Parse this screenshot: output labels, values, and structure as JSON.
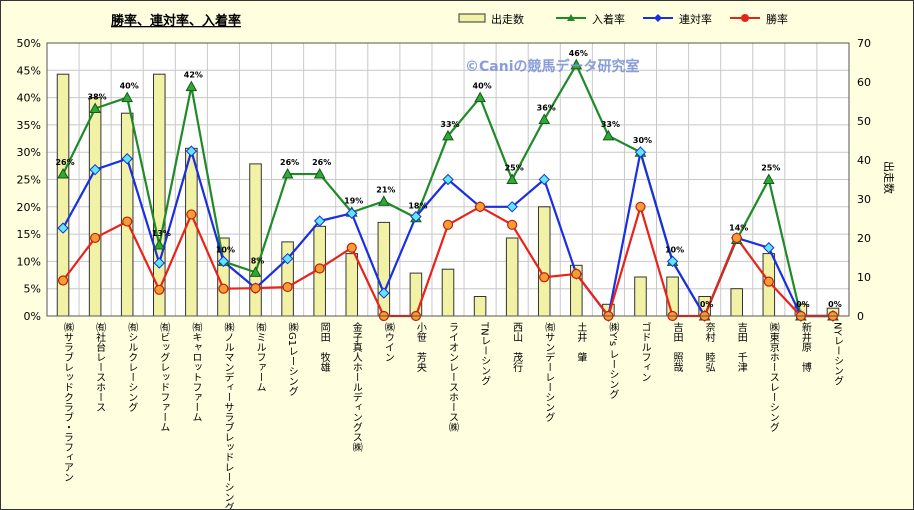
{
  "chart_data": {
    "type": "bar",
    "title": "勝率、連対率、入着率",
    "watermark": "©Caniの競馬データ研究室",
    "y2label": "出走数",
    "ylim": [
      0,
      50
    ],
    "y2lim": [
      0,
      70
    ],
    "yticks": [
      "0%",
      "5%",
      "10%",
      "15%",
      "20%",
      "25%",
      "30%",
      "35%",
      "40%",
      "45%",
      "50%"
    ],
    "y2ticks": [
      "0",
      "10",
      "20",
      "30",
      "40",
      "50",
      "60",
      "70"
    ],
    "categories": [
      "㈱サラブレッドクラブ・ラフィアン",
      "㈲社台レースホース",
      "㈲シルクレーシング",
      "㈲ビッグレッドファーム",
      "㈲キャロットファーム",
      "㈱ノルマンディーサラブレッドレーシング",
      "㈲ミルファーム",
      "㈱G1レーシング",
      "岡田　牧雄",
      "金子真人ホールディングス㈱",
      "㈱ウイン",
      "小笹　芳央",
      "ライオンレースホース㈱",
      "TNレーシング",
      "西山　茂行",
      "㈲サンデーレーシング",
      "土井　肇",
      "㈱Y's レーシング",
      "ゴドルフィン",
      "吉田　照哉",
      "奈村　睦弘",
      "吉田　千津",
      "㈱東京ホースレーシング",
      "新井原　博",
      "NYレーシング"
    ],
    "bar_series": {
      "name": "出走数",
      "values": [
        62,
        56,
        52,
        62,
        43,
        20,
        39,
        19,
        23,
        16,
        24,
        11,
        12,
        5,
        20,
        28,
        13,
        3,
        10,
        10,
        5,
        7,
        16,
        3,
        2
      ]
    },
    "series": [
      {
        "name": "入着率",
        "color": "#1e8a28",
        "values": [
          26,
          38,
          40,
          13,
          42,
          10,
          8,
          26,
          26,
          19,
          21,
          18,
          33,
          40,
          25,
          36,
          46,
          33,
          30,
          10,
          0,
          14,
          25,
          0,
          0
        ]
      },
      {
        "name": "連対率",
        "color": "#1a2fe0",
        "values": [
          16.1,
          26.8,
          28.8,
          9.7,
          30.2,
          10,
          5.1,
          10.5,
          17.4,
          18.8,
          4.2,
          18.2,
          25,
          20,
          20,
          25,
          7.7,
          0,
          30,
          10,
          0,
          14.3,
          12.5,
          0,
          0
        ]
      },
      {
        "name": "勝率",
        "color": "#e8231a",
        "values": [
          6.5,
          14.3,
          17.3,
          4.8,
          18.6,
          5,
          5.1,
          5.3,
          8.7,
          12.5,
          0,
          0,
          16.7,
          20,
          16.7,
          7.1,
          7.7,
          0,
          20,
          0,
          0,
          14.3,
          6.3,
          0,
          0
        ]
      }
    ],
    "data_labels": {
      "series": "入着率",
      "values": [
        "26%",
        "38%",
        "40%",
        "13%",
        "42%",
        "10%",
        "8%",
        "26%",
        "26%",
        "19%",
        "21%",
        "18%",
        "33%",
        "40%",
        "25%",
        "36%",
        "46%",
        "33%",
        "30%",
        "10%",
        "0%",
        "14%",
        "25%",
        "0%",
        "0%"
      ]
    },
    "grid": true,
    "legend": "top"
  }
}
